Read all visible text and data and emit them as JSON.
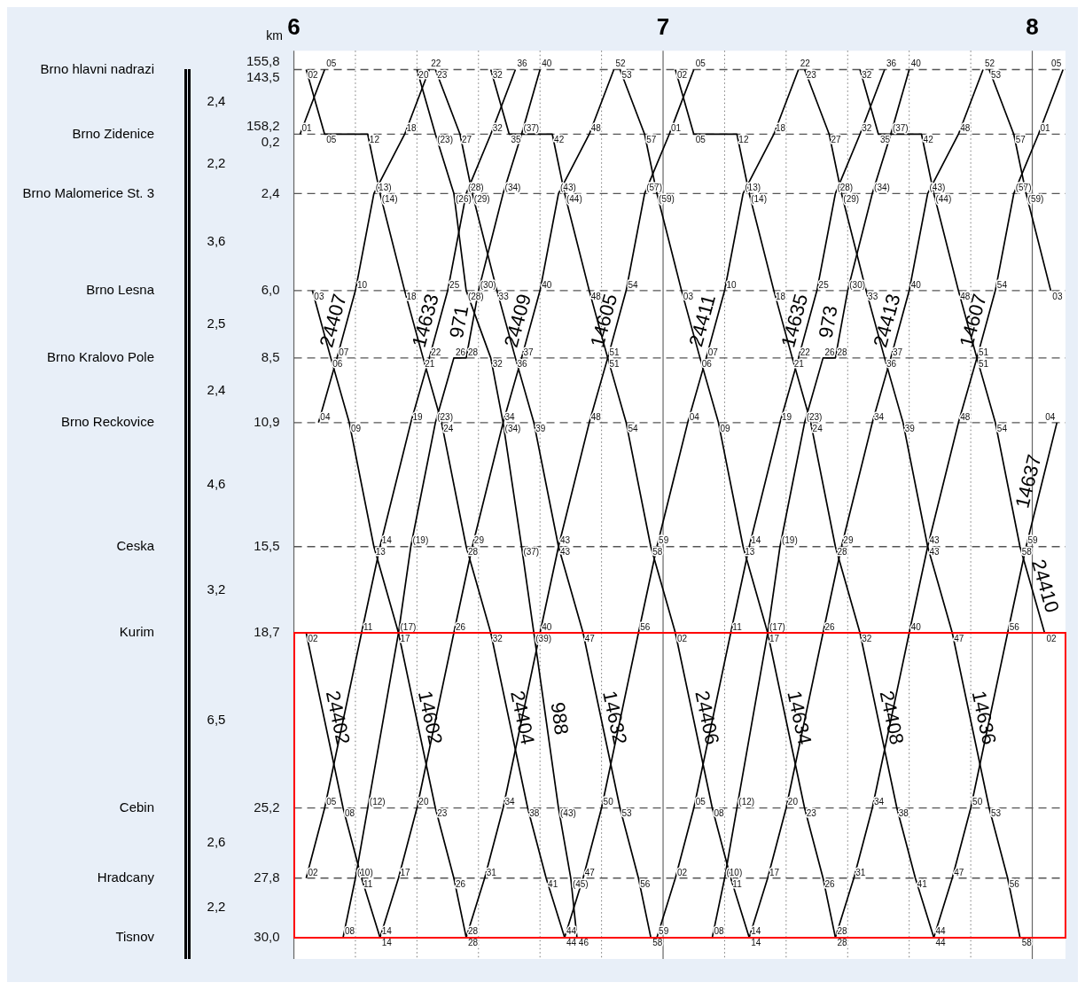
{
  "chart_data": {
    "type": "line",
    "xlim": [
      6,
      8.09
    ],
    "xticks": [
      6,
      7,
      8
    ],
    "ylabel": "km",
    "ylim": [
      30.8,
      -2.9
    ],
    "yticks": [
      {
        "value": -2.2,
        "label": "155,8\n143,5"
      },
      {
        "value": 0.2,
        "label": "158,2\n0,2"
      },
      {
        "value": 2.4,
        "label": "2,4"
      },
      {
        "value": 6,
        "label": "6,0"
      },
      {
        "value": 8.5,
        "label": "8,5"
      },
      {
        "value": 10.9,
        "label": "10,9"
      },
      {
        "value": 15.5,
        "label": "15,5"
      },
      {
        "value": 18.7,
        "label": "18,7"
      },
      {
        "value": 25.2,
        "label": "25,2"
      },
      {
        "value": 27.8,
        "label": "27,8"
      },
      {
        "value": 30,
        "label": "30,0"
      }
    ],
    "grid": true,
    "series": [
      {
        "color": "#000000",
        "x": [
          6.0167,
          6.0833
        ],
        "values": [
          0.2,
          -2.2
        ]
      },
      {
        "name": "24407",
        "color": "#000000",
        "x": [
          6.0667,
          6.1167,
          6.1667,
          6.2167,
          6.3,
          6.3667
        ],
        "values": [
          10.9,
          8.5,
          6,
          2.4,
          0.2,
          -2.2
        ]
      },
      {
        "name": "14633",
        "color": "#000000",
        "x": [
          6.0333,
          6.0833,
          6.1833,
          6.2333,
          6.3167,
          6.3667,
          6.4167,
          6.4667,
          6.5333,
          6.6
        ],
        "values": [
          27.8,
          25.2,
          18.7,
          15.5,
          10.9,
          8.5,
          6,
          2.4,
          0.2,
          -2.2
        ]
      },
      {
        "name": "971",
        "color": "#000000",
        "x": [
          6.1333,
          6.1667,
          6.2,
          6.2833,
          6.3167,
          6.3833,
          6.4333,
          6.4667,
          6.5,
          6.5667,
          6.6167,
          6.6667
        ],
        "values": [
          30,
          27.8,
          25.2,
          18.7,
          15.5,
          10.9,
          8.5,
          8.5,
          6,
          2.4,
          0.2,
          -2.2
        ]
      },
      {
        "name": "24409",
        "color": "#000000",
        "x": [
          6.2333,
          6.2833,
          6.3333,
          6.4333,
          6.4833,
          6.5667,
          6.6167,
          6.6667,
          6.7167,
          6.8,
          6.8667
        ],
        "values": [
          30,
          27.8,
          25.2,
          18.7,
          15.5,
          10.9,
          8.5,
          6,
          2.4,
          0.2,
          -2.2
        ]
      },
      {
        "name": "14605",
        "color": "#000000",
        "x": [
          6.4667,
          6.5167,
          6.5667,
          6.6667,
          6.7167,
          6.8,
          6.85,
          6.9,
          6.95,
          7.0167,
          7.0833
        ],
        "values": [
          30,
          27.8,
          25.2,
          18.7,
          15.5,
          10.9,
          8.5,
          6,
          2.4,
          0.2,
          -2.2
        ]
      },
      {
        "name": "24411",
        "color": "#000000",
        "x": [
          6.7333,
          6.7833,
          6.8333,
          6.9333,
          6.9833,
          7.0667,
          7.1167,
          7.1667,
          7.2167,
          7.3,
          7.3667
        ],
        "values": [
          30,
          27.8,
          25.2,
          18.7,
          15.5,
          10.9,
          8.5,
          6,
          2.4,
          0.2,
          -2.2
        ]
      },
      {
        "name": "14635",
        "color": "#000000",
        "x": [
          6.9833,
          7.0333,
          7.0833,
          7.1833,
          7.2333,
          7.3167,
          7.3667,
          7.4167,
          7.4667,
          7.5333,
          7.6
        ],
        "values": [
          30,
          27.8,
          25.2,
          18.7,
          15.5,
          10.9,
          8.5,
          6,
          2.4,
          0.2,
          -2.2
        ]
      },
      {
        "name": "973",
        "color": "#000000",
        "x": [
          7.1333,
          7.1667,
          7.2,
          7.2833,
          7.3167,
          7.3833,
          7.4333,
          7.4667,
          7.5,
          7.5667,
          7.6167,
          7.6667
        ],
        "values": [
          30,
          27.8,
          25.2,
          18.7,
          15.5,
          10.9,
          8.5,
          8.5,
          6,
          2.4,
          0.2,
          -2.2
        ]
      },
      {
        "name": "24413",
        "color": "#000000",
        "x": [
          7.2333,
          7.2833,
          7.3333,
          7.4333,
          7.4833,
          7.5667,
          7.6167,
          7.6667,
          7.7167,
          7.8,
          7.8667
        ],
        "values": [
          30,
          27.8,
          25.2,
          18.7,
          15.5,
          10.9,
          8.5,
          6,
          2.4,
          0.2,
          -2.2
        ]
      },
      {
        "name": "14607",
        "color": "#000000",
        "x": [
          7.4667,
          7.5167,
          7.5667,
          7.6667,
          7.7167,
          7.8,
          7.85,
          7.9,
          7.95,
          8.0167,
          8.0833
        ],
        "values": [
          30,
          27.8,
          25.2,
          18.7,
          15.5,
          10.9,
          8.5,
          6,
          2.4,
          0.2,
          -2.2
        ]
      },
      {
        "name": "14637",
        "color": "#000000",
        "x": [
          7.7333,
          7.7833,
          7.8333,
          7.9333,
          7.9833,
          8.0667
        ],
        "values": [
          30,
          27.8,
          25.2,
          18.7,
          15.5,
          10.9
        ]
      },
      {
        "name": "24402",
        "color": "#000000",
        "x": [
          6.0333,
          6.1333,
          6.1833,
          6.2333
        ],
        "values": [
          18.7,
          25.2,
          27.8,
          30
        ]
      },
      {
        "name": "14602",
        "color": "#000000",
        "x": [
          6.05,
          6.1,
          6.15,
          6.2167,
          6.2833,
          6.3833,
          6.4333,
          6.4667
        ],
        "values": [
          6,
          8.5,
          10.9,
          15.5,
          18.7,
          25.2,
          27.8,
          30
        ]
      },
      {
        "name": "24404",
        "color": "#000000",
        "x": [
          6.0333,
          6.0833,
          6.2,
          6.2333,
          6.3,
          6.35,
          6.4,
          6.4667,
          6.5333,
          6.6333,
          6.6833,
          6.7333
        ],
        "values": [
          -2.2,
          0.2,
          0.2,
          2.4,
          6,
          8.5,
          10.9,
          15.5,
          18.7,
          25.2,
          27.8,
          30
        ]
      },
      {
        "name": "988",
        "color": "#000000",
        "x": [
          6.3333,
          6.3833,
          6.4333,
          6.4667,
          6.5333,
          6.5667,
          6.6167,
          6.65,
          6.7167,
          6.75,
          6.7667
        ],
        "values": [
          -2.2,
          0.2,
          2.4,
          6,
          8.5,
          10.9,
          15.5,
          18.7,
          25.2,
          27.8,
          30
        ]
      },
      {
        "name": "14632",
        "color": "#000000",
        "x": [
          6.3833,
          6.45,
          6.4833,
          6.55,
          6.6,
          6.65,
          6.7167,
          6.7833,
          6.8833,
          6.9333,
          6.9667
        ],
        "values": [
          -2.2,
          0.2,
          2.4,
          6,
          8.5,
          10.9,
          15.5,
          18.7,
          25.2,
          27.8,
          30
        ]
      },
      {
        "name": "24406",
        "color": "#000000",
        "x": [
          6.5333,
          6.5833,
          6.7,
          6.7333,
          6.8,
          6.85,
          6.9,
          6.9667,
          7.0333,
          7.1333,
          7.1833,
          7.2333
        ],
        "values": [
          -2.2,
          0.2,
          0.2,
          2.4,
          6,
          8.5,
          10.9,
          15.5,
          18.7,
          25.2,
          27.8,
          30
        ]
      },
      {
        "name": "14634",
        "color": "#000000",
        "x": [
          6.8833,
          6.95,
          6.9833,
          7.05,
          7.1,
          7.15,
          7.2167,
          7.2833,
          7.3833,
          7.4333,
          7.4667
        ],
        "values": [
          -2.2,
          0.2,
          2.4,
          6,
          8.5,
          10.9,
          15.5,
          18.7,
          25.2,
          27.8,
          30
        ]
      },
      {
        "name": "24408",
        "color": "#000000",
        "x": [
          7.0333,
          7.0833,
          7.2,
          7.2333,
          7.3,
          7.35,
          7.4,
          7.4667,
          7.5333,
          7.6333,
          7.6833,
          7.7333
        ],
        "values": [
          -2.2,
          0.2,
          0.2,
          2.4,
          6,
          8.5,
          10.9,
          15.5,
          18.7,
          25.2,
          27.8,
          30
        ]
      },
      {
        "name": "14636",
        "color": "#000000",
        "x": [
          7.3833,
          7.45,
          7.4833,
          7.55,
          7.6,
          7.65,
          7.7167,
          7.7833,
          7.8833,
          7.9333,
          7.9667
        ],
        "values": [
          -2.2,
          0.2,
          2.4,
          6,
          8.5,
          10.9,
          15.5,
          18.7,
          25.2,
          27.8,
          30
        ]
      },
      {
        "name": "24410",
        "color": "#000000",
        "x": [
          7.5333,
          7.5833,
          7.7,
          7.7333,
          7.8,
          7.85,
          7.9,
          7.9667,
          8.0333
        ],
        "values": [
          -2.2,
          0.2,
          0.2,
          2.4,
          6,
          8.5,
          10.9,
          15.5,
          18.7
        ]
      },
      {
        "color": "#000000",
        "x": [
          7.8833,
          7.95,
          7.9833,
          8.05
        ],
        "values": [
          -2.2,
          0.2,
          2.4,
          6
        ]
      }
    ],
    "annotations": [
      "Brno hlavni nadrazi",
      "Brno Zidenice",
      "Brno Malomerice St. 3",
      "Brno Lesna",
      "Brno Kralovo Pole",
      "Brno Reckovice",
      "Ceska",
      "Kurim",
      "Cebin",
      "Hradcany",
      "Tisnov",
      "2,4",
      "2,2",
      "3,6",
      "2,5",
      "2,4",
      "4,6",
      "3,2",
      "6,5",
      "2,6",
      "2,2",
      {
        "text": "01",
        "x": 6.0167,
        "y": 0.2
      },
      {
        "text": "05",
        "x": 6.0833,
        "y": -2.2
      },
      {
        "text": "04",
        "x": 6.0667,
        "y": 10.9
      },
      {
        "text": "07",
        "x": 6.1167,
        "y": 8.5
      },
      {
        "text": "10",
        "x": 6.1667,
        "y": 6
      },
      {
        "text": "(13)",
        "x": 6.2167,
        "y": 2.4
      },
      {
        "text": "18",
        "x": 6.3,
        "y": 0.2
      },
      {
        "text": "22",
        "x": 6.3667,
        "y": -2.2
      },
      {
        "text": "02",
        "x": 6.0333,
        "y": 27.8
      },
      {
        "text": "05",
        "x": 6.0833,
        "y": 25.2
      },
      {
        "text": "11",
        "x": 6.1833,
        "y": 18.7
      },
      {
        "text": "14",
        "x": 6.2333,
        "y": 15.5
      },
      {
        "text": "19",
        "x": 6.3167,
        "y": 10.9
      },
      {
        "text": "22",
        "x": 6.3667,
        "y": 8.5
      },
      {
        "text": "25",
        "x": 6.4167,
        "y": 6
      },
      {
        "text": "(28)",
        "x": 6.4667,
        "y": 2.4
      },
      {
        "text": "32",
        "x": 6.5333,
        "y": 0.2
      },
      {
        "text": "36",
        "x": 6.6,
        "y": -2.2
      },
      {
        "text": "08",
        "x": 6.1333,
        "y": 30
      },
      {
        "text": "(10)",
        "x": 6.1667,
        "y": 27.8
      },
      {
        "text": "(12)",
        "x": 6.2,
        "y": 25.2
      },
      {
        "text": "(17)",
        "x": 6.2833,
        "y": 18.7
      },
      {
        "text": "(19)",
        "x": 6.3167,
        "y": 15.5
      },
      {
        "text": "(23)",
        "x": 6.3833,
        "y": 10.9
      },
      {
        "text": "26",
        "x": 6.4333,
        "y": 8.5
      },
      {
        "text": "28",
        "x": 6.4667,
        "y": 8.5
      },
      {
        "text": "(30)",
        "x": 6.5,
        "y": 6
      },
      {
        "text": "(34)",
        "x": 6.5667,
        "y": 2.4
      },
      {
        "text": "(37)",
        "x": 6.6167,
        "y": 0.2
      },
      {
        "text": "40",
        "x": 6.6667,
        "y": -2.2
      },
      {
        "text": "14",
        "x": 6.2333,
        "y": 30
      },
      {
        "text": "17",
        "x": 6.2833,
        "y": 27.8
      },
      {
        "text": "20",
        "x": 6.3333,
        "y": 25.2
      },
      {
        "text": "26",
        "x": 6.4333,
        "y": 18.7
      },
      {
        "text": "29",
        "x": 6.4833,
        "y": 15.5
      },
      {
        "text": "34",
        "x": 6.5667,
        "y": 10.9
      },
      {
        "text": "37",
        "x": 6.6167,
        "y": 8.5
      },
      {
        "text": "40",
        "x": 6.6667,
        "y": 6
      },
      {
        "text": "(43)",
        "x": 6.7167,
        "y": 2.4
      },
      {
        "text": "48",
        "x": 6.8,
        "y": 0.2
      },
      {
        "text": "52",
        "x": 6.8667,
        "y": -2.2
      },
      {
        "text": "28",
        "x": 6.4667,
        "y": 30
      },
      {
        "text": "31",
        "x": 6.5167,
        "y": 27.8
      },
      {
        "text": "34",
        "x": 6.5667,
        "y": 25.2
      },
      {
        "text": "40",
        "x": 6.6667,
        "y": 18.7
      },
      {
        "text": "43",
        "x": 6.7167,
        "y": 15.5
      },
      {
        "text": "48",
        "x": 6.8,
        "y": 10.9
      },
      {
        "text": "51",
        "x": 6.85,
        "y": 8.5
      },
      {
        "text": "54",
        "x": 6.9,
        "y": 6
      },
      {
        "text": "(57)",
        "x": 6.95,
        "y": 2.4
      },
      {
        "text": "01",
        "x": 7.0167,
        "y": 0.2
      },
      {
        "text": "05",
        "x": 7.0833,
        "y": -2.2
      },
      {
        "text": "44",
        "x": 6.7333,
        "y": 30
      },
      {
        "text": "47",
        "x": 6.7833,
        "y": 27.8
      },
      {
        "text": "50",
        "x": 6.8333,
        "y": 25.2
      },
      {
        "text": "56",
        "x": 6.9333,
        "y": 18.7
      },
      {
        "text": "59",
        "x": 6.9833,
        "y": 15.5
      },
      {
        "text": "04",
        "x": 7.0667,
        "y": 10.9
      },
      {
        "text": "07",
        "x": 7.1167,
        "y": 8.5
      },
      {
        "text": "10",
        "x": 7.1667,
        "y": 6
      },
      {
        "text": "(13)",
        "x": 7.2167,
        "y": 2.4
      },
      {
        "text": "18",
        "x": 7.3,
        "y": 0.2
      },
      {
        "text": "22",
        "x": 7.3667,
        "y": -2.2
      },
      {
        "text": "59",
        "x": 6.9833,
        "y": 30
      },
      {
        "text": "02",
        "x": 7.0333,
        "y": 27.8
      },
      {
        "text": "05",
        "x": 7.0833,
        "y": 25.2
      },
      {
        "text": "11",
        "x": 7.1833,
        "y": 18.7
      },
      {
        "text": "14",
        "x": 7.2333,
        "y": 15.5
      },
      {
        "text": "19",
        "x": 7.3167,
        "y": 10.9
      },
      {
        "text": "22",
        "x": 7.3667,
        "y": 8.5
      },
      {
        "text": "25",
        "x": 7.4167,
        "y": 6
      },
      {
        "text": "(28)",
        "x": 7.4667,
        "y": 2.4
      },
      {
        "text": "32",
        "x": 7.5333,
        "y": 0.2
      },
      {
        "text": "36",
        "x": 7.6,
        "y": -2.2
      },
      {
        "text": "08",
        "x": 7.1333,
        "y": 30
      },
      {
        "text": "(10)",
        "x": 7.1667,
        "y": 27.8
      },
      {
        "text": "(12)",
        "x": 7.2,
        "y": 25.2
      },
      {
        "text": "(17)",
        "x": 7.2833,
        "y": 18.7
      },
      {
        "text": "(19)",
        "x": 7.3167,
        "y": 15.5
      },
      {
        "text": "(23)",
        "x": 7.3833,
        "y": 10.9
      },
      {
        "text": "26",
        "x": 7.4333,
        "y": 8.5
      },
      {
        "text": "28",
        "x": 7.4667,
        "y": 8.5
      },
      {
        "text": "(30)",
        "x": 7.5,
        "y": 6
      },
      {
        "text": "(34)",
        "x": 7.5667,
        "y": 2.4
      },
      {
        "text": "(37)",
        "x": 7.6167,
        "y": 0.2
      },
      {
        "text": "40",
        "x": 7.6667,
        "y": -2.2
      },
      {
        "text": "14",
        "x": 7.2333,
        "y": 30
      },
      {
        "text": "17",
        "x": 7.2833,
        "y": 27.8
      },
      {
        "text": "20",
        "x": 7.3333,
        "y": 25.2
      },
      {
        "text": "26",
        "x": 7.4333,
        "y": 18.7
      },
      {
        "text": "29",
        "x": 7.4833,
        "y": 15.5
      },
      {
        "text": "34",
        "x": 7.5667,
        "y": 10.9
      },
      {
        "text": "37",
        "x": 7.6167,
        "y": 8.5
      },
      {
        "text": "40",
        "x": 7.6667,
        "y": 6
      },
      {
        "text": "(43)",
        "x": 7.7167,
        "y": 2.4
      },
      {
        "text": "48",
        "x": 7.8,
        "y": 0.2
      },
      {
        "text": "52",
        "x": 7.8667,
        "y": -2.2
      },
      {
        "text": "28",
        "x": 7.4667,
        "y": 30
      },
      {
        "text": "31",
        "x": 7.5167,
        "y": 27.8
      },
      {
        "text": "34",
        "x": 7.5667,
        "y": 25.2
      },
      {
        "text": "40",
        "x": 7.6667,
        "y": 18.7
      },
      {
        "text": "43",
        "x": 7.7167,
        "y": 15.5
      },
      {
        "text": "48",
        "x": 7.8,
        "y": 10.9
      },
      {
        "text": "51",
        "x": 7.85,
        "y": 8.5
      },
      {
        "text": "54",
        "x": 7.9,
        "y": 6
      },
      {
        "text": "(57)",
        "x": 7.95,
        "y": 2.4
      },
      {
        "text": "01",
        "x": 8.0167,
        "y": 0.2
      },
      {
        "text": "05",
        "x": 8.0833,
        "y": -2.2
      },
      {
        "text": "44",
        "x": 7.7333,
        "y": 30
      },
      {
        "text": "47",
        "x": 7.7833,
        "y": 27.8
      },
      {
        "text": "50",
        "x": 7.8333,
        "y": 25.2
      },
      {
        "text": "56",
        "x": 7.9333,
        "y": 18.7
      },
      {
        "text": "59",
        "x": 7.9833,
        "y": 15.5
      },
      {
        "text": "04",
        "x": 8.0667,
        "y": 10.9
      },
      {
        "text": "02",
        "x": 6.0333,
        "y": 18.7
      },
      {
        "text": "08",
        "x": 6.1333,
        "y": 25.2
      },
      {
        "text": "11",
        "x": 6.1833,
        "y": 27.8
      },
      {
        "text": "14",
        "x": 6.2333,
        "y": 30
      },
      {
        "text": "03",
        "x": 6.05,
        "y": 6
      },
      {
        "text": "06",
        "x": 6.1,
        "y": 8.5
      },
      {
        "text": "09",
        "x": 6.15,
        "y": 10.9
      },
      {
        "text": "13",
        "x": 6.2167,
        "y": 15.5
      },
      {
        "text": "17",
        "x": 6.2833,
        "y": 18.7
      },
      {
        "text": "23",
        "x": 6.3833,
        "y": 25.2
      },
      {
        "text": "26",
        "x": 6.4333,
        "y": 27.8
      },
      {
        "text": "28",
        "x": 6.4667,
        "y": 30
      },
      {
        "text": "02",
        "x": 6.0333,
        "y": -2.2
      },
      {
        "text": "05",
        "x": 6.0833,
        "y": 0.2
      },
      {
        "text": "12",
        "x": 6.2,
        "y": 0.2
      },
      {
        "text": "(14)",
        "x": 6.2333,
        "y": 2.4
      },
      {
        "text": "18",
        "x": 6.3,
        "y": 6
      },
      {
        "text": "21",
        "x": 6.35,
        "y": 8.5
      },
      {
        "text": "24",
        "x": 6.4,
        "y": 10.9
      },
      {
        "text": "28",
        "x": 6.4667,
        "y": 15.5
      },
      {
        "text": "32",
        "x": 6.5333,
        "y": 18.7
      },
      {
        "text": "38",
        "x": 6.6333,
        "y": 25.2
      },
      {
        "text": "41",
        "x": 6.6833,
        "y": 27.8
      },
      {
        "text": "44",
        "x": 6.7333,
        "y": 30
      },
      {
        "text": "20",
        "x": 6.3333,
        "y": -2.2
      },
      {
        "text": "(23)",
        "x": 6.3833,
        "y": 0.2
      },
      {
        "text": "(26)",
        "x": 6.4333,
        "y": 2.4
      },
      {
        "text": "(28)",
        "x": 6.4667,
        "y": 6
      },
      {
        "text": "32",
        "x": 6.5333,
        "y": 8.5
      },
      {
        "text": "(34)",
        "x": 6.5667,
        "y": 10.9
      },
      {
        "text": "(37)",
        "x": 6.6167,
        "y": 15.5
      },
      {
        "text": "(39)",
        "x": 6.65,
        "y": 18.7
      },
      {
        "text": "(43)",
        "x": 6.7167,
        "y": 25.2
      },
      {
        "text": "(45)",
        "x": 6.75,
        "y": 27.8
      },
      {
        "text": "46",
        "x": 6.7667,
        "y": 30
      },
      {
        "text": "23",
        "x": 6.3833,
        "y": -2.2
      },
      {
        "text": "27",
        "x": 6.45,
        "y": 0.2
      },
      {
        "text": "(29)",
        "x": 6.4833,
        "y": 2.4
      },
      {
        "text": "33",
        "x": 6.55,
        "y": 6
      },
      {
        "text": "36",
        "x": 6.6,
        "y": 8.5
      },
      {
        "text": "39",
        "x": 6.65,
        "y": 10.9
      },
      {
        "text": "43",
        "x": 6.7167,
        "y": 15.5
      },
      {
        "text": "47",
        "x": 6.7833,
        "y": 18.7
      },
      {
        "text": "53",
        "x": 6.8833,
        "y": 25.2
      },
      {
        "text": "56",
        "x": 6.9333,
        "y": 27.8
      },
      {
        "text": "58",
        "x": 6.9667,
        "y": 30
      },
      {
        "text": "32",
        "x": 6.5333,
        "y": -2.2
      },
      {
        "text": "35",
        "x": 6.5833,
        "y": 0.2
      },
      {
        "text": "42",
        "x": 6.7,
        "y": 0.2
      },
      {
        "text": "(44)",
        "x": 6.7333,
        "y": 2.4
      },
      {
        "text": "48",
        "x": 6.8,
        "y": 6
      },
      {
        "text": "51",
        "x": 6.85,
        "y": 8.5
      },
      {
        "text": "54",
        "x": 6.9,
        "y": 10.9
      },
      {
        "text": "58",
        "x": 6.9667,
        "y": 15.5
      },
      {
        "text": "02",
        "x": 7.0333,
        "y": 18.7
      },
      {
        "text": "08",
        "x": 7.1333,
        "y": 25.2
      },
      {
        "text": "11",
        "x": 7.1833,
        "y": 27.8
      },
      {
        "text": "14",
        "x": 7.2333,
        "y": 30
      },
      {
        "text": "53",
        "x": 6.8833,
        "y": -2.2
      },
      {
        "text": "57",
        "x": 6.95,
        "y": 0.2
      },
      {
        "text": "(59)",
        "x": 6.9833,
        "y": 2.4
      },
      {
        "text": "03",
        "x": 7.05,
        "y": 6
      },
      {
        "text": "06",
        "x": 7.1,
        "y": 8.5
      },
      {
        "text": "09",
        "x": 7.15,
        "y": 10.9
      },
      {
        "text": "13",
        "x": 7.2167,
        "y": 15.5
      },
      {
        "text": "17",
        "x": 7.2833,
        "y": 18.7
      },
      {
        "text": "23",
        "x": 7.3833,
        "y": 25.2
      },
      {
        "text": "26",
        "x": 7.4333,
        "y": 27.8
      },
      {
        "text": "28",
        "x": 7.4667,
        "y": 30
      },
      {
        "text": "02",
        "x": 7.0333,
        "y": -2.2
      },
      {
        "text": "05",
        "x": 7.0833,
        "y": 0.2
      },
      {
        "text": "12",
        "x": 7.2,
        "y": 0.2
      },
      {
        "text": "(14)",
        "x": 7.2333,
        "y": 2.4
      },
      {
        "text": "18",
        "x": 7.3,
        "y": 6
      },
      {
        "text": "21",
        "x": 7.35,
        "y": 8.5
      },
      {
        "text": "24",
        "x": 7.4,
        "y": 10.9
      },
      {
        "text": "28",
        "x": 7.4667,
        "y": 15.5
      },
      {
        "text": "32",
        "x": 7.5333,
        "y": 18.7
      },
      {
        "text": "38",
        "x": 7.6333,
        "y": 25.2
      },
      {
        "text": "41",
        "x": 7.6833,
        "y": 27.8
      },
      {
        "text": "44",
        "x": 7.7333,
        "y": 30
      },
      {
        "text": "23",
        "x": 7.3833,
        "y": -2.2
      },
      {
        "text": "27",
        "x": 7.45,
        "y": 0.2
      },
      {
        "text": "(29)",
        "x": 7.4833,
        "y": 2.4
      },
      {
        "text": "33",
        "x": 7.55,
        "y": 6
      },
      {
        "text": "36",
        "x": 7.6,
        "y": 8.5
      },
      {
        "text": "39",
        "x": 7.65,
        "y": 10.9
      },
      {
        "text": "43",
        "x": 7.7167,
        "y": 15.5
      },
      {
        "text": "47",
        "x": 7.7833,
        "y": 18.7
      },
      {
        "text": "53",
        "x": 7.8833,
        "y": 25.2
      },
      {
        "text": "56",
        "x": 7.9333,
        "y": 27.8
      },
      {
        "text": "58",
        "x": 7.9667,
        "y": 30
      },
      {
        "text": "32",
        "x": 7.5333,
        "y": -2.2
      },
      {
        "text": "35",
        "x": 7.5833,
        "y": 0.2
      },
      {
        "text": "42",
        "x": 7.7,
        "y": 0.2
      },
      {
        "text": "(44)",
        "x": 7.7333,
        "y": 2.4
      },
      {
        "text": "48",
        "x": 7.8,
        "y": 6
      },
      {
        "text": "51",
        "x": 7.85,
        "y": 8.5
      },
      {
        "text": "54",
        "x": 7.9,
        "y": 10.9
      },
      {
        "text": "58",
        "x": 7.9667,
        "y": 15.5
      },
      {
        "text": "02",
        "x": 8.0333,
        "y": 18.7
      },
      {
        "text": "53",
        "x": 7.8833,
        "y": -2.2
      },
      {
        "text": "57",
        "x": 7.95,
        "y": 0.2
      },
      {
        "text": "(59)",
        "x": 7.9833,
        "y": 2.4
      },
      {
        "text": "03",
        "x": 8.05,
        "y": 6
      }
    ]
  }
}
